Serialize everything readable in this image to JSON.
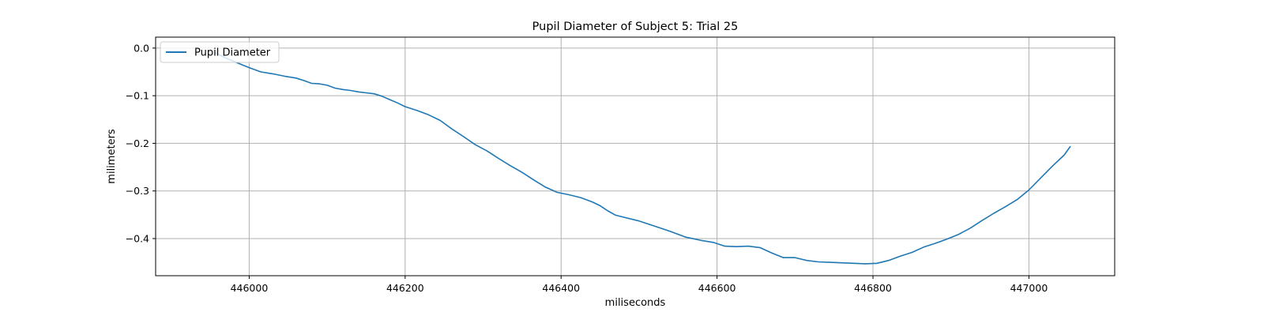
{
  "chart_data": {
    "type": "line",
    "title": "Pupil Diameter of Subject 5: Trial 25",
    "xlabel": "miliseconds",
    "ylabel": "milimeters",
    "xlim": [
      445880,
      447110
    ],
    "ylim": [
      -0.478,
      0.023
    ],
    "xticks": [
      446000,
      446200,
      446400,
      446600,
      446800,
      447000
    ],
    "yticks": [
      0.0,
      -0.1,
      -0.2,
      -0.3,
      -0.4
    ],
    "ytick_labels": [
      "0.0",
      "−0.1",
      "−0.2",
      "−0.3",
      "−0.4"
    ],
    "grid": true,
    "legend": {
      "placement": "upper-left"
    },
    "series": [
      {
        "name": "Pupil Diameter",
        "color": "#1f77b4",
        "x": [
          445957,
          445970,
          445985,
          446000,
          446015,
          446030,
          446045,
          446060,
          446070,
          446080,
          446090,
          446100,
          446110,
          446120,
          446130,
          446140,
          446150,
          446160,
          446170,
          446180,
          446190,
          446200,
          446215,
          446230,
          446245,
          446260,
          446275,
          446290,
          446305,
          446320,
          446335,
          446350,
          446365,
          446380,
          446395,
          446410,
          446425,
          446440,
          446450,
          446460,
          446470,
          446480,
          446500,
          446520,
          446540,
          446560,
          446580,
          446595,
          446610,
          446625,
          446640,
          446655,
          446670,
          446685,
          446700,
          446715,
          446730,
          446745,
          446760,
          446775,
          446790,
          446805,
          446820,
          446835,
          446850,
          446865,
          446880,
          446895,
          446910,
          446925,
          446940,
          446955,
          446970,
          446985,
          447000,
          447015,
          447030,
          447045,
          447053
        ],
        "y": [
          -0.01,
          -0.021,
          -0.031,
          -0.041,
          -0.05,
          -0.054,
          -0.059,
          -0.063,
          -0.068,
          -0.074,
          -0.075,
          -0.078,
          -0.084,
          -0.087,
          -0.089,
          -0.092,
          -0.094,
          -0.096,
          -0.101,
          -0.108,
          -0.115,
          -0.123,
          -0.131,
          -0.14,
          -0.152,
          -0.17,
          -0.186,
          -0.203,
          -0.216,
          -0.232,
          -0.247,
          -0.261,
          -0.277,
          -0.292,
          -0.303,
          -0.308,
          -0.314,
          -0.323,
          -0.331,
          -0.342,
          -0.351,
          -0.355,
          -0.363,
          -0.374,
          -0.385,
          -0.397,
          -0.404,
          -0.408,
          -0.416,
          -0.417,
          -0.416,
          -0.419,
          -0.43,
          -0.44,
          -0.44,
          -0.446,
          -0.449,
          -0.45,
          -0.451,
          -0.452,
          -0.453,
          -0.452,
          -0.446,
          -0.437,
          -0.429,
          -0.418,
          -0.41,
          -0.401,
          -0.391,
          -0.378,
          -0.362,
          -0.347,
          -0.333,
          -0.318,
          -0.298,
          -0.273,
          -0.248,
          -0.225,
          -0.207
        ]
      }
    ]
  }
}
